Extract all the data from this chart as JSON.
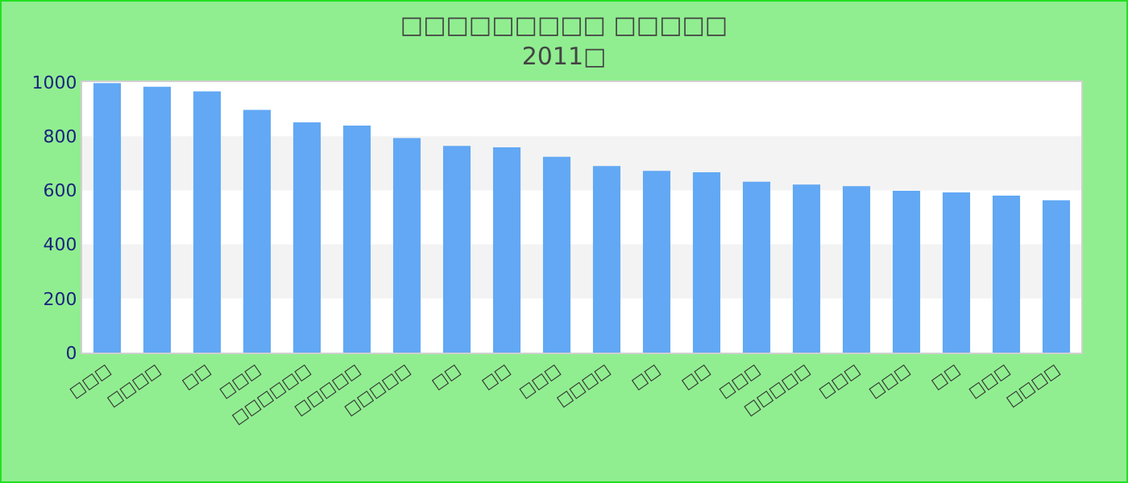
{
  "chart_data": {
    "type": "bar",
    "title": "□□□□□□□□□ □□□□□",
    "subtitle": "2011□",
    "categories": [
      "□□□",
      "□□□□",
      "□□",
      "□□□",
      "□□□□□□",
      "□□□□□",
      "□□□□□",
      "□□",
      "□□",
      "□□□",
      "□□□□",
      "□□",
      "□□",
      "□□□",
      "□□□□□",
      "□□□",
      "□□□",
      "□□",
      "□□□",
      "□□□□"
    ],
    "values": [
      996,
      983,
      966,
      897,
      851,
      839,
      793,
      764,
      759,
      724,
      690,
      672,
      667,
      632,
      621,
      615,
      598,
      592,
      580,
      563
    ],
    "color": "#62a8f4",
    "ylim": [
      0,
      1000
    ],
    "yticks": [
      0,
      200,
      400,
      600,
      800,
      1000
    ]
  }
}
